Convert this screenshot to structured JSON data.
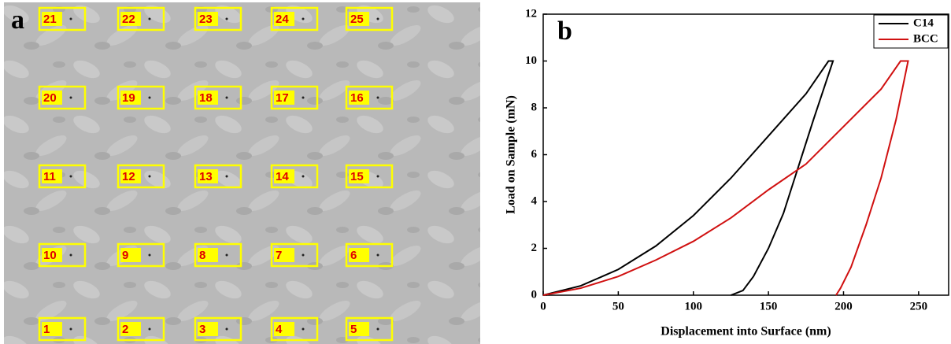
{
  "micrograph": {
    "label": "a",
    "rows": [
      [
        "21",
        "22",
        "23",
        "24",
        "25"
      ],
      [
        "20",
        "19",
        "18",
        "17",
        "16"
      ],
      [
        "11",
        "12",
        "13",
        "14",
        "15"
      ],
      [
        "10",
        "9",
        "8",
        "7",
        "6"
      ],
      [
        "1",
        "2",
        "3",
        "4",
        "5"
      ]
    ]
  },
  "chart_data": {
    "type": "line",
    "label": "b",
    "x_label": "Displacement into Surface (nm)",
    "y_label": "Load on Sample (mN)",
    "xlim": [
      0,
      270
    ],
    "ylim": [
      0,
      12
    ],
    "xticks": [
      0,
      50,
      100,
      150,
      200,
      250
    ],
    "yticks": [
      0,
      2,
      4,
      6,
      8,
      10,
      12
    ],
    "legend": "upper right",
    "series": [
      {
        "name": "C14",
        "color": "#000000",
        "x": [
          0,
          25,
          50,
          75,
          100,
          125,
          150,
          175,
          190,
          193,
          180,
          170,
          160,
          150,
          140,
          133,
          125
        ],
        "y": [
          0,
          0.4,
          1.1,
          2.1,
          3.4,
          5.0,
          6.8,
          8.6,
          10,
          10,
          7.5,
          5.5,
          3.5,
          2.0,
          0.8,
          0.2,
          0
        ]
      },
      {
        "name": "BCC",
        "color": "#d01010",
        "x": [
          0,
          25,
          50,
          75,
          100,
          125,
          150,
          175,
          200,
          225,
          238,
          243,
          235,
          225,
          215,
          205,
          198,
          195
        ],
        "y": [
          0,
          0.3,
          0.8,
          1.5,
          2.3,
          3.3,
          4.5,
          5.6,
          7.2,
          8.8,
          10,
          10,
          7.5,
          5.0,
          3.0,
          1.2,
          0.3,
          0
        ]
      }
    ]
  }
}
